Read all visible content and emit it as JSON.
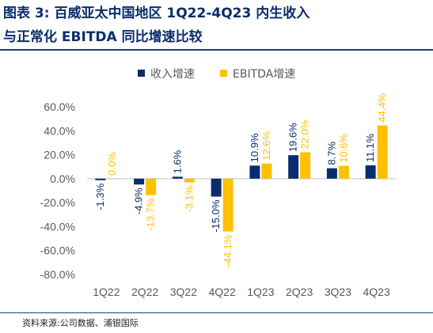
{
  "header": {
    "title_line1": "图表  3:  百威亚太中国地区  1Q22-4Q23  内生收入",
    "title_line2": "与正常化 EBITDA 同比增速比较"
  },
  "source": "资料来源:公司数据、浦银国际",
  "colors": {
    "revenue": "#0a2c6e",
    "ebitda": "#ffc000",
    "header_text": "#0b2d6b",
    "tick_text": "#595959",
    "axis_line": "#bfbfbf"
  },
  "chart_data": {
    "type": "bar",
    "categories": [
      "1Q22",
      "2Q22",
      "3Q22",
      "4Q22",
      "1Q23",
      "2Q23",
      "3Q23",
      "4Q23"
    ],
    "series": [
      {
        "name": "收入增速",
        "color": "#0a2c6e",
        "values": [
          -1.3,
          -4.9,
          1.6,
          -15.0,
          10.9,
          19.6,
          8.7,
          11.1
        ],
        "labels": [
          "-1.3%",
          "-4.9%",
          "1.6%",
          "-15.0%",
          "10.9%",
          "19.6%",
          "8.7%",
          "11.1%"
        ]
      },
      {
        "name": "EBITDA增速",
        "color": "#ffc000",
        "values": [
          0.0,
          -13.7,
          -3.1,
          -44.1,
          12.6,
          22.0,
          10.6,
          44.4
        ],
        "labels": [
          "0.0%",
          "-13.7%",
          "-3.1%",
          "-44.1%",
          "12.6%",
          "22.0%",
          "10.6%",
          "44.4%"
        ]
      }
    ],
    "yticks": [
      "60.0%",
      "40.0%",
      "20.0%",
      "0.0%",
      "-20.0%",
      "-40.0%",
      "-60.0%",
      "-80.0%"
    ],
    "ylim": [
      -80,
      60
    ],
    "legend_position": "top",
    "grid": false
  }
}
